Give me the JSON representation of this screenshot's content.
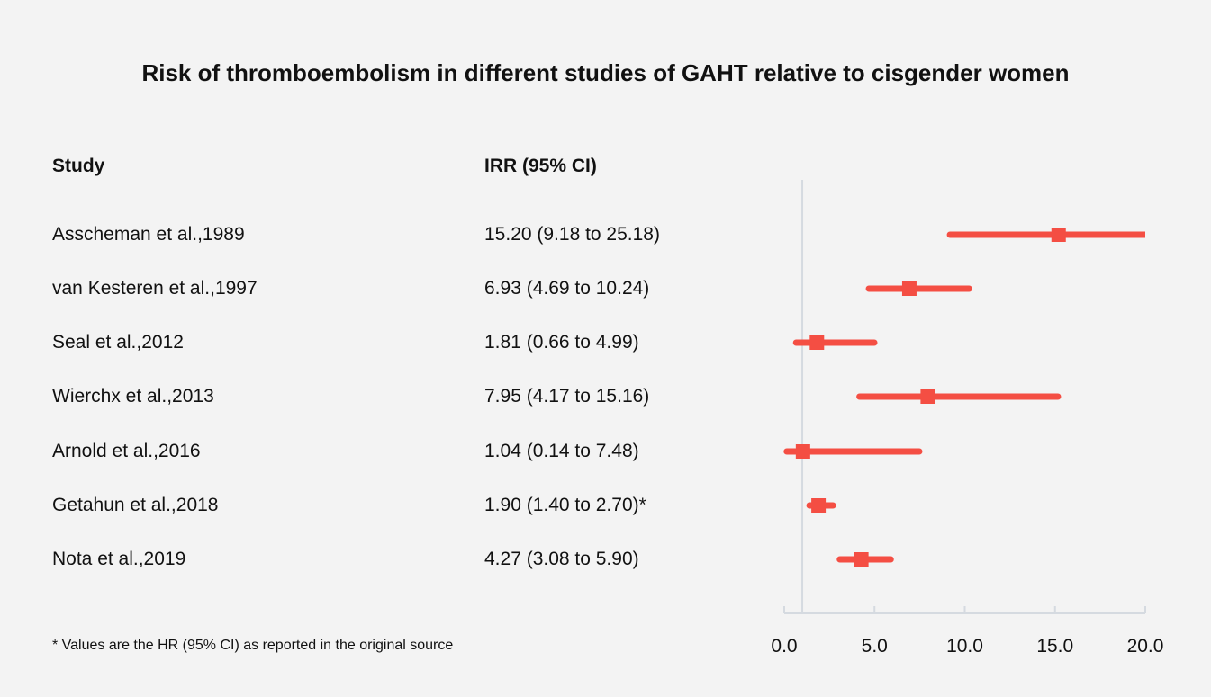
{
  "chart_data": {
    "type": "forest",
    "title": "Risk of thromboembolism in different studies of GAHT relative to cisgender women",
    "column_headers": {
      "study": "Study",
      "estimate": "IRR (95% CI)"
    },
    "rows": [
      {
        "study": "Asscheman et al.,1989",
        "label": "15.20 (9.18 to 25.18)",
        "value": 15.2,
        "lower": 9.18,
        "upper": 25.18
      },
      {
        "study": "van Kesteren et al.,1997",
        "label": "6.93 (4.69 to 10.24)",
        "value": 6.93,
        "lower": 4.69,
        "upper": 10.24
      },
      {
        "study": "Seal et al.,2012",
        "label": "1.81 (0.66 to 4.99)",
        "value": 1.81,
        "lower": 0.66,
        "upper": 4.99
      },
      {
        "study": "Wierchx et al.,2013",
        "label": "7.95 (4.17 to 15.16)",
        "value": 7.95,
        "lower": 4.17,
        "upper": 15.16
      },
      {
        "study": "Arnold et al.,2016",
        "label": "1.04 (0.14 to 7.48)",
        "value": 1.04,
        "lower": 0.14,
        "upper": 7.48
      },
      {
        "study": "Getahun et al.,2018",
        "label": "1.90 (1.40 to 2.70)*",
        "value": 1.9,
        "lower": 1.4,
        "upper": 2.7
      },
      {
        "study": "Nota et al.,2019",
        "label": "4.27 (3.08 to 5.90)",
        "value": 4.27,
        "lower": 3.08,
        "upper": 5.9
      }
    ],
    "xlim": [
      0,
      20
    ],
    "x_ticks": [
      "0.0",
      "5.0",
      "10.0",
      "15.0",
      "20.0"
    ],
    "reference_line": 1,
    "footnote": "* Values are the HR (95% CI) as reported in the original source",
    "colors": {
      "marker": "#f44e43",
      "axis": "#d5dae0",
      "background": "#f3f3f3"
    }
  }
}
